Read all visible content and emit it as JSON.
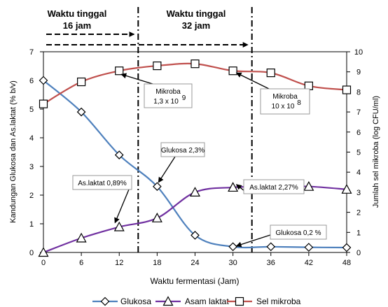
{
  "chart_data": {
    "type": "line",
    "x": [
      0,
      6,
      12,
      18,
      24,
      30,
      36,
      42,
      48
    ],
    "x_ticks": [
      "0",
      "6",
      "12",
      "18",
      "24",
      "30",
      "36",
      "42",
      "48"
    ],
    "xlabel": "Waktu fermentasi (Jam)",
    "ylabel_left": "Kandungan Glukosa dan As.laktat (% b/v)",
    "ylabel_right": "Jumlah sel mikroba (log CFU/ml)",
    "ylim_left": [
      0,
      7
    ],
    "ylim_right": [
      0,
      10
    ],
    "yticks_left": [
      "0",
      "1",
      "2",
      "3",
      "4",
      "5",
      "6",
      "7"
    ],
    "yticks_right": [
      "0",
      "1",
      "2",
      "3",
      "4",
      "5",
      "6",
      "7",
      "8",
      "9",
      "10"
    ],
    "series": [
      {
        "name": "Glukosa",
        "axis": "left",
        "marker": "diamond",
        "color": "#4F81BD",
        "values": [
          6.0,
          4.9,
          3.4,
          2.3,
          0.6,
          0.2,
          0.2,
          0.18,
          0.17
        ]
      },
      {
        "name": "Asam laktat",
        "axis": "left",
        "marker": "triangle",
        "color": "#7030A0",
        "values": [
          0.0,
          0.5,
          0.89,
          1.2,
          2.1,
          2.27,
          2.3,
          2.3,
          2.2
        ]
      },
      {
        "name": "Sel mikroba",
        "axis": "right",
        "marker": "square",
        "color": "#C0504D",
        "values": [
          7.4,
          8.5,
          9.05,
          9.3,
          9.4,
          9.05,
          8.95,
          8.3,
          8.1
        ]
      }
    ],
    "vlines": [
      15,
      33
    ],
    "periods": [
      {
        "line1": "Waktu tinggal",
        "line2": "16 jam",
        "end": 15
      },
      {
        "line1": "Waktu tinggal",
        "line2": "32 jam",
        "end": 33
      }
    ],
    "annotations": [
      {
        "lines": [
          "Mikroba",
          "1,3 x 10",
          "9"
        ]
      },
      {
        "lines": [
          "Mikroba",
          "10 x 10",
          "8"
        ]
      },
      {
        "lines": [
          "Glukosa 2,3%"
        ]
      },
      {
        "lines": [
          "As.laktat 2,27%"
        ]
      },
      {
        "lines": [
          "As.laktat 0,89%"
        ]
      },
      {
        "lines": [
          "Glukosa 0,2 %"
        ]
      }
    ],
    "legend_position": "bottom",
    "grid": false
  }
}
